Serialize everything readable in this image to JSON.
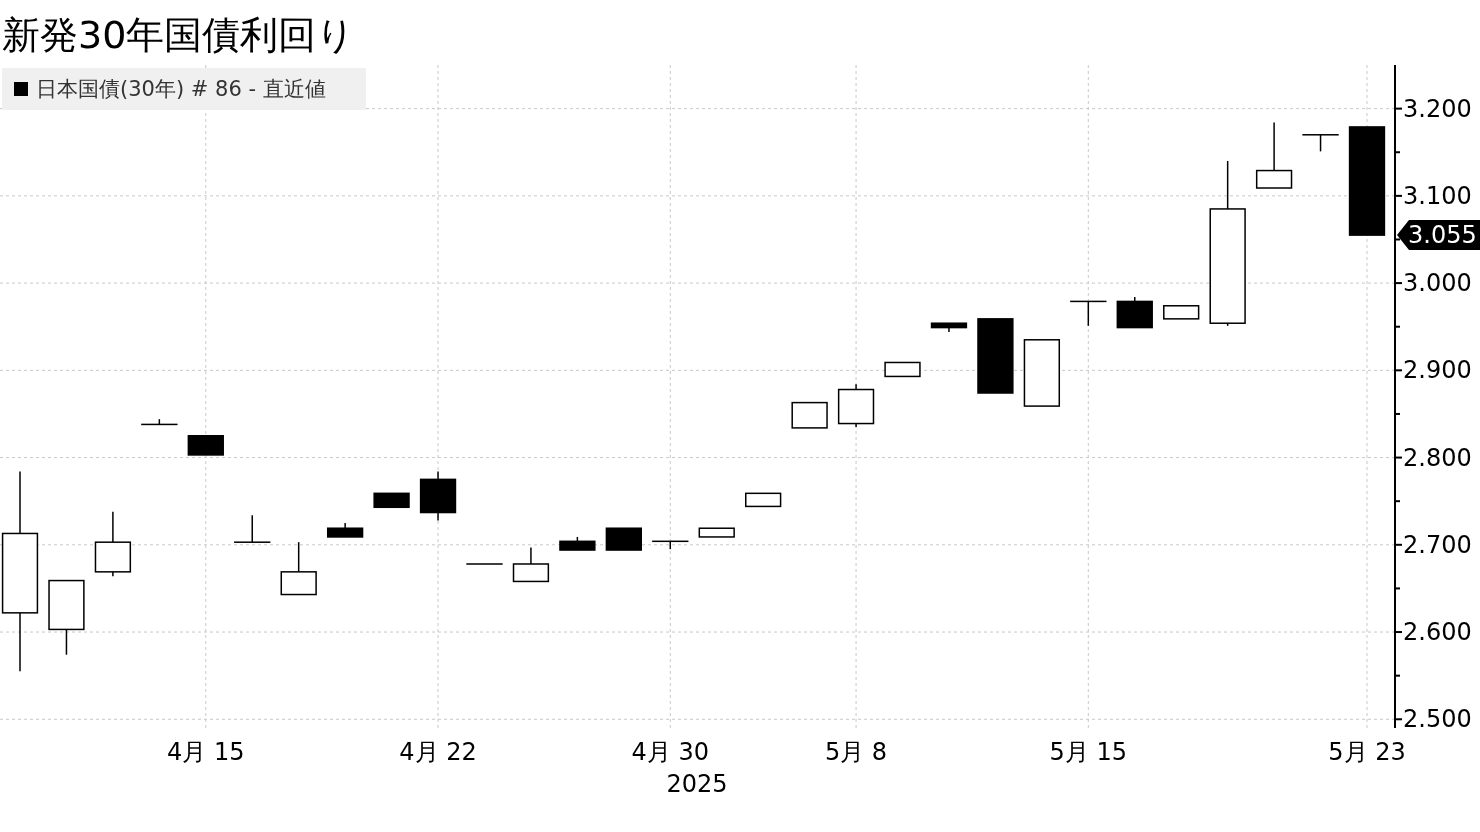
{
  "chart_data": {
    "type": "candlestick",
    "title": "新発30年国債利回り",
    "xlabel": "2025",
    "categories": [
      null,
      null,
      null,
      null,
      "4月 15",
      null,
      null,
      null,
      null,
      "4月 22",
      null,
      null,
      null,
      null,
      "4月 30",
      null,
      null,
      null,
      "5月 8",
      null,
      null,
      null,
      null,
      "5月 15",
      null,
      null,
      null,
      null,
      null,
      "5月 23"
    ],
    "series": [
      {
        "name": "日本国債(30年) # 86 - 直近値",
        "color": "#000000",
        "ohlc": [
          [
            2.622,
            2.784,
            2.555,
            2.713
          ],
          [
            2.603,
            2.659,
            2.574,
            2.659
          ],
          [
            2.669,
            2.738,
            2.664,
            2.703
          ],
          [
            2.838,
            2.844,
            2.838,
            2.838
          ],
          [
            2.825,
            2.825,
            2.803,
            2.803
          ],
          [
            2.703,
            2.734,
            2.703,
            2.703
          ],
          [
            2.643,
            2.703,
            2.643,
            2.669
          ],
          [
            2.719,
            2.725,
            2.709,
            2.709
          ],
          [
            2.759,
            2.759,
            2.743,
            2.743
          ],
          [
            2.775,
            2.784,
            2.728,
            2.737
          ],
          [
            2.678,
            2.678,
            2.678,
            2.678
          ],
          [
            2.658,
            2.697,
            2.658,
            2.678
          ],
          [
            2.704,
            2.709,
            2.694,
            2.694
          ],
          [
            2.719,
            2.719,
            2.694,
            2.694
          ],
          [
            2.704,
            2.704,
            2.695,
            2.704
          ],
          [
            2.709,
            2.719,
            2.709,
            2.719
          ],
          [
            2.744,
            2.759,
            2.744,
            2.759
          ],
          [
            2.834,
            2.863,
            2.834,
            2.863
          ],
          [
            2.839,
            2.884,
            2.835,
            2.878
          ],
          [
            2.893,
            2.909,
            2.893,
            2.909
          ],
          [
            2.954,
            2.954,
            2.944,
            2.949
          ],
          [
            2.959,
            2.959,
            2.874,
            2.874
          ],
          [
            2.859,
            2.935,
            2.859,
            2.935
          ],
          [
            2.979,
            2.979,
            2.951,
            2.979
          ],
          [
            2.979,
            2.984,
            2.949,
            2.949
          ],
          [
            2.959,
            2.974,
            2.959,
            2.974
          ],
          [
            2.954,
            3.14,
            2.951,
            3.085
          ],
          [
            3.109,
            3.184,
            3.109,
            3.129
          ],
          [
            3.17,
            3.17,
            3.151,
            3.17
          ],
          [
            3.179,
            3.179,
            3.055,
            3.055
          ]
        ]
      }
    ],
    "ylim": [
      2.49,
      3.25
    ],
    "yticks": [
      {
        "value": 2.5,
        "label": "2.500"
      },
      {
        "value": 2.55,
        "label": null
      },
      {
        "value": 2.6,
        "label": "2.600"
      },
      {
        "value": 2.65,
        "label": null
      },
      {
        "value": 2.7,
        "label": "2.700"
      },
      {
        "value": 2.75,
        "label": null
      },
      {
        "value": 2.8,
        "label": "2.800"
      },
      {
        "value": 2.85,
        "label": null
      },
      {
        "value": 2.9,
        "label": "2.900"
      },
      {
        "value": 2.95,
        "label": null
      },
      {
        "value": 3.0,
        "label": "3.000"
      },
      {
        "value": 3.05,
        "label": null
      },
      {
        "value": 3.1,
        "label": "3.100"
      },
      {
        "value": 3.15,
        "label": null
      },
      {
        "value": 3.2,
        "label": "3.200"
      }
    ],
    "grid": true,
    "legend": "top left",
    "annotations": [
      {
        "text": "3.055",
        "x": "5月 23",
        "y": 3.055
      }
    ]
  }
}
